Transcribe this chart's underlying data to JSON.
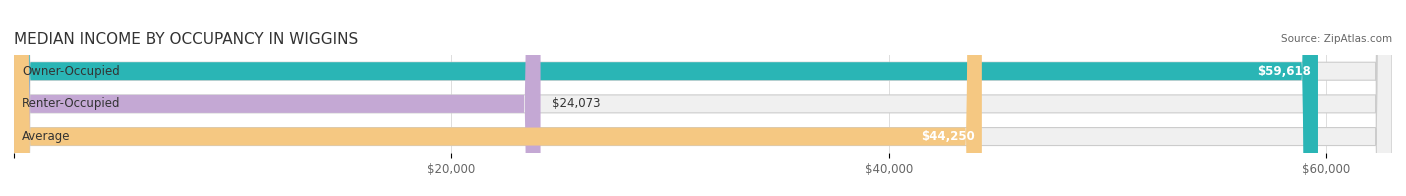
{
  "title": "MEDIAN INCOME BY OCCUPANCY IN WIGGINS",
  "source": "Source: ZipAtlas.com",
  "categories": [
    "Owner-Occupied",
    "Renter-Occupied",
    "Average"
  ],
  "values": [
    59618,
    24073,
    44250
  ],
  "labels": [
    "$59,618",
    "$24,073",
    "$44,250"
  ],
  "bar_colors": [
    "#2ab5b5",
    "#c4a8d4",
    "#f5c882"
  ],
  "bar_bg_color": "#f0f0f0",
  "xlim": [
    0,
    63000
  ],
  "xticks": [
    0,
    20000,
    40000,
    60000
  ],
  "xticklabels": [
    "",
    "$20,000",
    "$40,000",
    "$60,000"
  ],
  "figsize": [
    14.06,
    1.96
  ],
  "dpi": 100,
  "title_fontsize": 11,
  "label_fontsize": 8.5,
  "bar_height": 0.55
}
